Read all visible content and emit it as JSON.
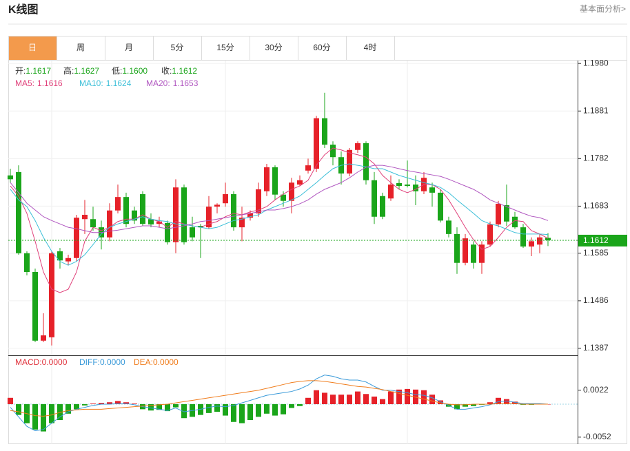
{
  "header": {
    "title": "K线图",
    "link": "基本面分析>"
  },
  "tabs": [
    "日",
    "周",
    "月",
    "5分",
    "15分",
    "30分",
    "60分",
    "4时"
  ],
  "active_tab": 0,
  "chart_data": [
    {
      "type": "candlestick",
      "ohlc_legend": [
        {
          "name": "开:",
          "value": {
            "value": 1.1617,
            "label": "1.1617"
          }
        },
        {
          "name": "高:",
          "value": {
            "value": 1.1627,
            "label": "1.1627"
          }
        },
        {
          "name": "低:",
          "value": {
            "value": 1.16,
            "label": "1.1600"
          }
        },
        {
          "name": "收:",
          "value": {
            "value": 1.1612,
            "label": "1.1612"
          }
        }
      ],
      "ohlc_value_color": "#1aa51a",
      "up_color": "#e62129",
      "down_color": "#1aa51a",
      "open": [
        1.1747,
        1.1754,
        1.1585,
        1.1546,
        1.1403,
        1.141,
        1.1589,
        1.1568,
        1.1575,
        1.1656,
        1.1656,
        1.1639,
        1.1618,
        1.1674,
        1.1702,
        1.1674,
        1.1708,
        1.1656,
        1.1646,
        1.1648,
        1.1608,
        1.1722,
        1.1639,
        1.1642,
        1.1639,
        1.1682,
        1.1689,
        1.1708,
        1.1639,
        1.1659,
        1.1668,
        1.1714,
        1.1764,
        1.1707,
        1.1694,
        1.1728,
        1.1757,
        1.1761,
        1.1866,
        1.1811,
        1.1785,
        1.1751,
        1.18,
        1.1814,
        1.1737,
        1.1704,
        1.1699,
        1.1731,
        1.1728,
        1.1728,
        1.1714,
        1.1722,
        1.1711,
        1.1653,
        1.1625,
        1.1565,
        1.1603,
        1.1565,
        1.1603,
        1.1645,
        1.1685,
        1.1661,
        1.1639,
        1.1599,
        1.1603,
        1.1617
      ],
      "high": [
        1.1761,
        1.1768,
        1.1589,
        1.1553,
        1.146,
        1.1589,
        1.1596,
        1.1582,
        1.1665,
        1.1696,
        1.1682,
        1.1653,
        1.1689,
        1.1728,
        1.1711,
        1.1682,
        1.1714,
        1.1668,
        1.1661,
        1.1653,
        1.1739,
        1.1728,
        1.1661,
        1.1646,
        1.1704,
        1.1689,
        1.1732,
        1.1714,
        1.1682,
        1.1674,
        1.1732,
        1.1771,
        1.1768,
        1.1714,
        1.1742,
        1.1747,
        1.1782,
        1.1871,
        1.1919,
        1.1818,
        1.1797,
        1.1804,
        1.1818,
        1.1818,
        1.1754,
        1.1711,
        1.1747,
        1.1739,
        1.1778,
        1.1747,
        1.1754,
        1.1732,
        1.1718,
        1.1661,
        1.1639,
        1.1625,
        1.161,
        1.161,
        1.1651,
        1.1694,
        1.1728,
        1.1671,
        1.1646,
        1.1618,
        1.1625,
        1.1627
      ],
      "low": [
        1.1732,
        1.1582,
        1.1539,
        1.14,
        1.14,
        1.1393,
        1.1553,
        1.156,
        1.1568,
        1.1625,
        1.1632,
        1.1593,
        1.161,
        1.1668,
        1.1639,
        1.1646,
        1.1642,
        1.1639,
        1.1639,
        1.1603,
        1.1585,
        1.1603,
        1.161,
        1.1575,
        1.1635,
        1.1668,
        1.1682,
        1.1632,
        1.161,
        1.1653,
        1.1661,
        1.1704,
        1.1696,
        1.1682,
        1.1668,
        1.1725,
        1.1751,
        1.1754,
        1.1804,
        1.1768,
        1.1728,
        1.1745,
        1.1794,
        1.1728,
        1.1646,
        1.1656,
        1.1694,
        1.1718,
        1.1722,
        1.1685,
        1.1708,
        1.1682,
        1.1649,
        1.1618,
        1.1542,
        1.156,
        1.1553,
        1.1542,
        1.1599,
        1.1639,
        1.1642,
        1.1636,
        1.1596,
        1.1579,
        1.1585,
        1.16
      ],
      "close": [
        1.1739,
        1.1585,
        1.1546,
        1.1403,
        1.1414,
        1.1585,
        1.157,
        1.1575,
        1.1659,
        1.1665,
        1.1639,
        1.1618,
        1.1674,
        1.1702,
        1.1646,
        1.1653,
        1.1646,
        1.1645,
        1.1651,
        1.1608,
        1.1722,
        1.1608,
        1.1618,
        1.1639,
        1.1682,
        1.1686,
        1.1708,
        1.1639,
        1.1659,
        1.1668,
        1.1718,
        1.1764,
        1.1707,
        1.1694,
        1.1732,
        1.1737,
        1.1768,
        1.1866,
        1.1811,
        1.1785,
        1.1751,
        1.18,
        1.1814,
        1.1737,
        1.1661,
        1.1661,
        1.1728,
        1.1725,
        1.1725,
        1.1714,
        1.1742,
        1.1711,
        1.1653,
        1.1625,
        1.1565,
        1.1616,
        1.1565,
        1.1603,
        1.1645,
        1.1688,
        1.1651,
        1.1639,
        1.1599,
        1.161,
        1.1618,
        1.1612
      ],
      "series": [
        {
          "name": "MA5:",
          "legend_value": 1.1616,
          "color": "#e0407a",
          "values": [
            1.1725,
            1.1704,
            1.1668,
            1.161,
            1.1546,
            1.151,
            1.1503,
            1.151,
            1.1546,
            1.161,
            1.1639,
            1.1632,
            1.1639,
            1.1651,
            1.1656,
            1.1656,
            1.1665,
            1.1656,
            1.1651,
            1.1639,
            1.1651,
            1.1646,
            1.1642,
            1.1639,
            1.1646,
            1.1651,
            1.1661,
            1.1668,
            1.1665,
            1.1671,
            1.1675,
            1.1682,
            1.1696,
            1.1708,
            1.1718,
            1.1725,
            1.1737,
            1.1768,
            1.179,
            1.1804,
            1.18,
            1.1794,
            1.179,
            1.1785,
            1.1771,
            1.1747,
            1.1732,
            1.1718,
            1.1711,
            1.1718,
            1.1728,
            1.1728,
            1.1718,
            1.1696,
            1.1668,
            1.1639,
            1.1613,
            1.1593,
            1.1599,
            1.1618,
            1.1639,
            1.1653,
            1.1651,
            1.1632,
            1.1625,
            1.1616
          ]
        },
        {
          "name": "MA10:",
          "legend_value": 1.1624,
          "color": "#3bbfd8",
          "values": [
            1.1718,
            1.1696,
            1.1682,
            1.1653,
            1.1618,
            1.1589,
            1.1568,
            1.156,
            1.1568,
            1.1582,
            1.1603,
            1.1625,
            1.1639,
            1.1646,
            1.1651,
            1.1656,
            1.1661,
            1.1656,
            1.1653,
            1.1651,
            1.1646,
            1.1645,
            1.1642,
            1.1639,
            1.1636,
            1.1639,
            1.1646,
            1.1653,
            1.1656,
            1.1661,
            1.1665,
            1.1675,
            1.1682,
            1.1689,
            1.1696,
            1.1704,
            1.1718,
            1.1732,
            1.1747,
            1.1761,
            1.1768,
            1.1771,
            1.1768,
            1.1765,
            1.1761,
            1.1761,
            1.1754,
            1.1747,
            1.1742,
            1.1737,
            1.1732,
            1.1728,
            1.1722,
            1.1711,
            1.1696,
            1.1682,
            1.1668,
            1.1653,
            1.1646,
            1.1642,
            1.1635,
            1.1628,
            1.1625,
            1.1625,
            1.1625,
            1.1624
          ]
        },
        {
          "name": "MA20:",
          "legend_value": 1.1653,
          "color": "#b056c0",
          "values": [
            1.1732,
            1.1711,
            1.1689,
            1.1675,
            1.1661,
            1.1653,
            1.1646,
            1.1639,
            1.1636,
            1.1632,
            1.1628,
            1.1628,
            1.1631,
            1.1633,
            1.1636,
            1.1639,
            1.1642,
            1.1642,
            1.1639,
            1.1636,
            1.1639,
            1.1642,
            1.1646,
            1.1651,
            1.1653,
            1.1656,
            1.1659,
            1.1662,
            1.1665,
            1.1668,
            1.1671,
            1.1675,
            1.1675,
            1.1678,
            1.1682,
            1.1688,
            1.1696,
            1.1708,
            1.1718,
            1.1725,
            1.1732,
            1.1742,
            1.1754,
            1.1764,
            1.1768,
            1.1768,
            1.1765,
            1.1761,
            1.1757,
            1.1754,
            1.1751,
            1.1748,
            1.1745,
            1.1739,
            1.1732,
            1.1725,
            1.1718,
            1.1708,
            1.1696,
            1.1689,
            1.1682,
            1.1675,
            1.1668,
            1.1662,
            1.1659,
            1.1653
          ]
        }
      ],
      "current_price": 1.1612,
      "current_price_color": "#1aa51a",
      "ylim": [
        1.1374,
        1.1986
      ],
      "yticks": [
        {
          "value": 1.198,
          "label": "1.1980"
        },
        {
          "value": 1.1881,
          "label": "1.1881"
        },
        {
          "value": 1.1782,
          "label": "1.1782"
        },
        {
          "value": 1.1683,
          "label": "1.1683"
        },
        {
          "value": 1.1585,
          "label": "1.1585"
        },
        {
          "value": 1.1486,
          "label": "1.1486"
        },
        {
          "value": 1.1387,
          "label": "1.1387"
        }
      ],
      "grid": true
    },
    {
      "type": "macd",
      "histogram": {
        "name": "MACD:",
        "legend_value": {
          "value": 0,
          "label": "0.0000"
        },
        "color": "#e0303a",
        "up_color": "#e62129",
        "down_color": "#1aa51a",
        "values": [
          0.001,
          -0.0017,
          -0.003,
          -0.004,
          -0.0043,
          -0.003,
          -0.0025,
          -0.0015,
          -0.0008,
          -0.0002,
          0.0001,
          0.0002,
          0.0003,
          0.0005,
          0.0003,
          0.0001,
          -0.0008,
          -0.001,
          -0.0009,
          -0.0011,
          -0.0005,
          -0.0022,
          -0.002,
          -0.0017,
          -0.0014,
          -0.0012,
          -0.0018,
          -0.0028,
          -0.003,
          -0.0025,
          -0.002,
          -0.0015,
          -0.0018,
          -0.0016,
          -0.0006,
          -0.0003,
          0.001,
          0.0022,
          0.0018,
          0.0015,
          0.0015,
          0.0015,
          0.002,
          0.0016,
          0.0012,
          0.0008,
          0.002,
          0.0023,
          0.0024,
          0.0023,
          0.0022,
          0.0015,
          0.0006,
          -0.0004,
          -0.0008,
          -0.0004,
          -0.0003,
          -0.0001,
          0.0003,
          0.001,
          0.0008,
          0.0004,
          -0.0001,
          -0.0001,
          0.0001,
          0
        ]
      },
      "series": [
        {
          "name": "DIFF:",
          "legend_value": {
            "value": 0,
            "label": "0.0000"
          },
          "color": "#3a9ad9",
          "values": [
            -0.0005,
            -0.002,
            -0.0035,
            -0.0042,
            -0.004,
            -0.003,
            -0.002,
            -0.0012,
            -0.0008,
            -0.0005,
            -0.0002,
            0,
            0,
            0.0001,
            0.0001,
            -0.0001,
            -0.0004,
            -0.0006,
            -0.0008,
            -0.001,
            -0.0006,
            -0.0012,
            -0.001,
            -0.0008,
            -0.0005,
            -0.0003,
            -0.0004,
            -0.0002,
            0.0002,
            0.0006,
            0.001,
            0.0014,
            0.0016,
            0.0018,
            0.002,
            0.0024,
            0.003,
            0.004,
            0.0046,
            0.0044,
            0.004,
            0.0038,
            0.0038,
            0.0035,
            0.0028,
            0.0022,
            0.0022,
            0.002,
            0.0018,
            0.0015,
            0.0014,
            0.001,
            0.0004,
            -0.0002,
            -0.0008,
            -0.0008,
            -0.0006,
            -0.0004,
            -0.0001,
            0.0004,
            0.0005,
            0.0003,
            0.0001,
            0.0001,
            0.0001,
            0
          ]
        },
        {
          "name": "DEA:",
          "legend_value": {
            "value": 0,
            "label": "0.0000"
          },
          "color": "#f07c1b",
          "values": [
            -0.001,
            -0.0012,
            -0.0015,
            -0.0018,
            -0.0019,
            -0.0017,
            -0.0013,
            -0.001,
            -0.0009,
            -0.0008,
            -0.0008,
            -0.0008,
            -0.0007,
            -0.0006,
            -0.0005,
            -0.0004,
            -0.0003,
            -0.0002,
            -0.0001,
            0,
            0.0002,
            0.0004,
            0.0006,
            0.0008,
            0.001,
            0.0012,
            0.0014,
            0.0016,
            0.0018,
            0.002,
            0.0022,
            0.0025,
            0.0028,
            0.0031,
            0.0034,
            0.0036,
            0.0037,
            0.0037,
            0.0036,
            0.0034,
            0.0032,
            0.003,
            0.0028,
            0.0027,
            0.0025,
            0.0023,
            0.002,
            0.0017,
            0.0014,
            0.0011,
            0.0008,
            0.0005,
            0.0002,
            0,
            -0.0001,
            -0.0001,
            0,
            0,
            0,
            0.0001,
            0.0001,
            0.0001,
            0,
            0,
            0,
            0
          ]
        }
      ],
      "ylim": [
        -0.0063,
        0.0076
      ],
      "yticks": [
        {
          "value": 0.0022,
          "label": "0.0022"
        },
        {
          "value": -0.0052,
          "label": "-0.0052"
        }
      ]
    }
  ]
}
